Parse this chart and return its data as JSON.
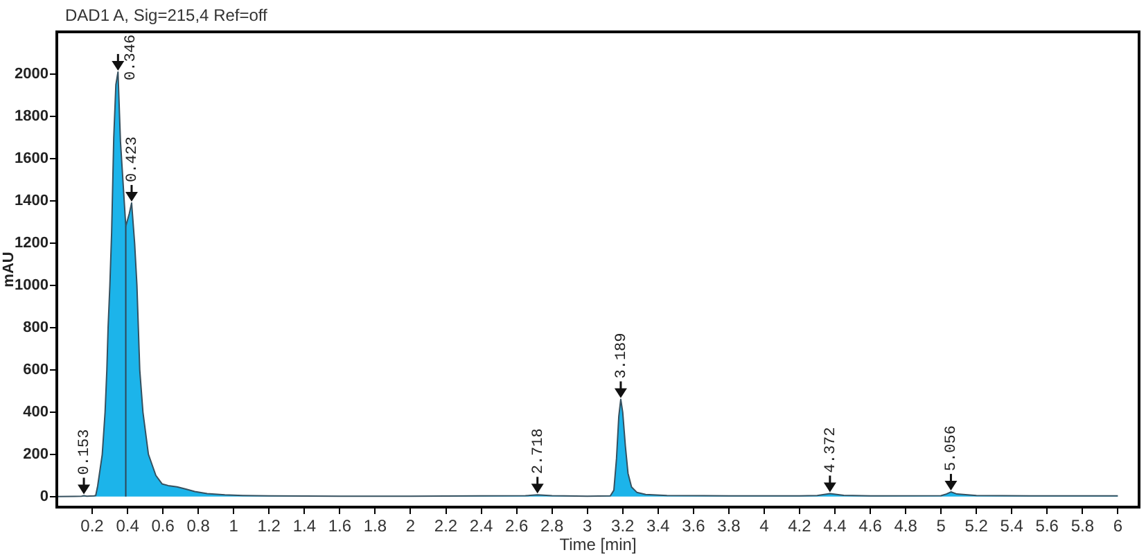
{
  "chart_data": {
    "type": "area",
    "title": "DAD1 A, Sig=215,4 Ref=off",
    "xlabel": "Time [min]",
    "ylabel": "mAU",
    "x": [
      0,
      0.1,
      0.14,
      0.153,
      0.17,
      0.21,
      0.22,
      0.231,
      0.257,
      0.273,
      0.283,
      0.29,
      0.3,
      0.31,
      0.322,
      0.334,
      0.346,
      0.36,
      0.375,
      0.39,
      0.41,
      0.423,
      0.44,
      0.453,
      0.461,
      0.469,
      0.487,
      0.518,
      0.56,
      0.595,
      0.63,
      0.68,
      0.73,
      0.78,
      0.85,
      0.95,
      1.05,
      1.2,
      1.6,
      2,
      2.4,
      2.65,
      2.718,
      2.8,
      3,
      3.13,
      3.15,
      3.165,
      3.178,
      3.189,
      3.2,
      3.215,
      3.23,
      3.25,
      3.28,
      3.33,
      3.45,
      3.8,
      4.2,
      4.3,
      4.372,
      4.45,
      4.6,
      5,
      5.03,
      5.056,
      5.09,
      5.2,
      5.5,
      6
    ],
    "values": [
      0,
      1,
      2,
      4,
      2,
      3,
      5,
      50,
      200,
      400,
      600,
      800,
      1000,
      1250,
      1700,
      1950,
      2010,
      1680,
      1480,
      1280,
      1340,
      1390,
      1200,
      1000,
      800,
      600,
      400,
      200,
      100,
      60,
      52,
      46,
      35,
      24,
      14,
      8,
      5,
      3,
      2,
      2,
      3,
      4,
      8,
      4,
      2,
      3,
      30,
      180,
      380,
      460,
      400,
      240,
      110,
      45,
      20,
      10,
      5,
      3,
      3,
      5,
      14,
      6,
      3,
      4,
      12,
      22,
      12,
      5,
      3,
      3
    ],
    "color": "#1cb4ea",
    "xlim": [
      0,
      6.12
    ],
    "xticks": [
      0.2,
      0.4,
      0.6,
      0.8,
      1,
      1.2,
      1.4,
      1.6,
      1.8,
      2,
      2.2,
      2.4,
      2.6,
      2.8,
      3,
      3.2,
      3.4,
      3.6,
      3.8,
      4,
      4.2,
      4.4,
      4.6,
      4.8,
      5,
      5.2,
      5.4,
      5.6,
      5.8,
      6
    ],
    "ylim": [
      -50,
      2200
    ],
    "yticks": [
      0,
      200,
      400,
      600,
      800,
      1000,
      1200,
      1400,
      1600,
      1800,
      2000
    ],
    "ref_lines": [
      {
        "axis": "x",
        "value": 0.39,
        "color": "#2f4656"
      }
    ],
    "annotations": [
      {
        "text": "0.153",
        "x": 0.153,
        "y": 4
      },
      {
        "text": "0.346",
        "x": 0.346,
        "y": 2010
      },
      {
        "text": "0.423",
        "x": 0.423,
        "y": 1390
      },
      {
        "text": "2.718",
        "x": 2.718,
        "y": 8
      },
      {
        "text": "3.189",
        "x": 3.189,
        "y": 460
      },
      {
        "text": "4.372",
        "x": 4.372,
        "y": 14
      },
      {
        "text": "5.056",
        "x": 5.056,
        "y": 22
      }
    ]
  }
}
